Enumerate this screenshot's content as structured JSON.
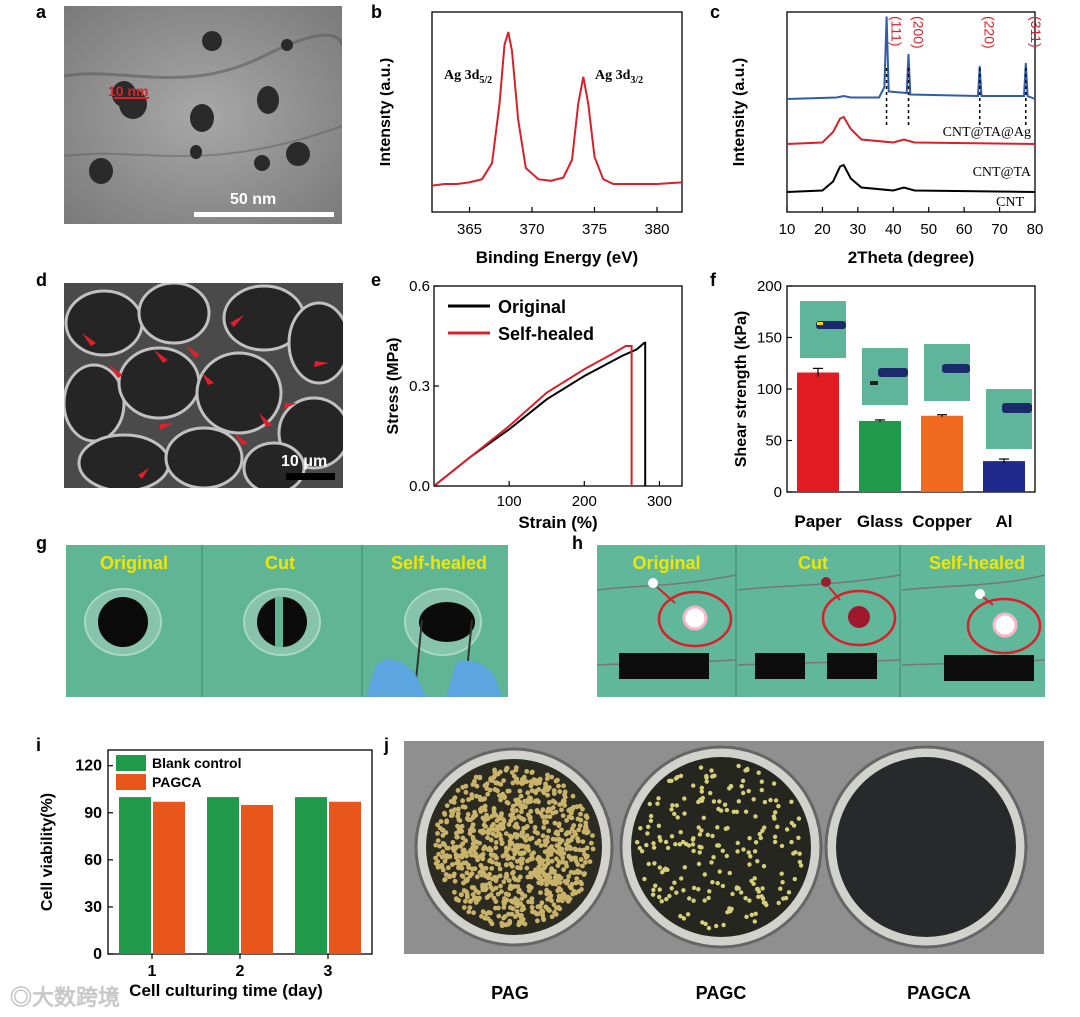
{
  "panels": {
    "a": {
      "letter": "a",
      "scale_small": "10 nm",
      "scale_large": "50 nm"
    },
    "b": {
      "letter": "b",
      "xlabel": "Binding Energy (eV)",
      "ylabel": "Intensity (a.u.)",
      "peak1_label": "Ag 3d5/2",
      "peak2_label": "Ag 3d3/2",
      "xticks": [
        "365",
        "370",
        "375",
        "380"
      ]
    },
    "c": {
      "letter": "c",
      "xlabel": "2Theta (degree)",
      "ylabel": "Intensity (a.u.)",
      "xticks": [
        "10",
        "20",
        "30",
        "40",
        "50",
        "60",
        "70",
        "80"
      ],
      "planes": [
        "(111)",
        "(200)",
        "(220)",
        "(311)"
      ],
      "series_labels": [
        "CNT@TA@Ag",
        "CNT@TA",
        "CNT"
      ]
    },
    "d": {
      "letter": "d",
      "scale": "10 μm"
    },
    "e": {
      "letter": "e",
      "xlabel": "Strain (%)",
      "ylabel": "Stress (MPa)",
      "xticks": [
        "100",
        "200",
        "300"
      ],
      "yticks": [
        "0.0",
        "0.3",
        "0.6"
      ],
      "legend": [
        "Original",
        "Self-healed"
      ]
    },
    "f": {
      "letter": "f",
      "ylabel": "Shear strength (kPa)",
      "yticks": [
        "0",
        "50",
        "100",
        "150",
        "200"
      ],
      "categories": [
        "Paper",
        "Glass",
        "Copper",
        "Al"
      ]
    },
    "g": {
      "letter": "g",
      "labels": [
        "Original",
        "Cut",
        "Self-healed"
      ]
    },
    "h": {
      "letter": "h",
      "labels": [
        "Original",
        "Cut",
        "Self-healed"
      ]
    },
    "i": {
      "letter": "i",
      "xlabel": "Cell culturing time (day)",
      "ylabel": "Cell viability(%)",
      "yticks": [
        "0",
        "30",
        "60",
        "90",
        "120"
      ],
      "categories": [
        "1",
        "2",
        "3"
      ],
      "legend": [
        "Blank control",
        "PAGCA"
      ]
    },
    "j": {
      "letter": "j",
      "labels": [
        "PAG",
        "PAGC",
        "PAGCA"
      ]
    }
  },
  "watermark": "大数跨境",
  "colors": {
    "red": "#d9202a",
    "blue": "#2f5ea8",
    "black": "#000000",
    "green": "#1e9a4a",
    "orange": "#e8561a",
    "navy": "#1f2a8c",
    "photo_green": "#5fb594"
  },
  "chart_data": [
    {
      "panel": "b",
      "type": "line",
      "title": "",
      "xlabel": "Binding Energy (eV)",
      "ylabel": "Intensity (a.u.)",
      "xlim": [
        362,
        382
      ],
      "series": [
        {
          "name": "Ag 3d",
          "color": "#d9202a",
          "x": [
            362,
            363,
            364,
            365,
            366,
            366.8,
            367.4,
            367.8,
            368.1,
            368.4,
            368.9,
            369.5,
            370.5,
            371.5,
            372.5,
            373.2,
            373.7,
            374.1,
            374.5,
            375,
            375.7,
            376.5,
            378,
            380,
            382
          ],
          "y": [
            0.04,
            0.05,
            0.05,
            0.06,
            0.08,
            0.18,
            0.55,
            0.92,
            1.0,
            0.88,
            0.45,
            0.15,
            0.08,
            0.07,
            0.09,
            0.2,
            0.55,
            0.72,
            0.55,
            0.22,
            0.08,
            0.05,
            0.05,
            0.05,
            0.06
          ]
        }
      ]
    },
    {
      "panel": "c",
      "type": "line",
      "title": "",
      "xlabel": "2Theta (degree)",
      "ylabel": "Intensity (a.u.)",
      "xlim": [
        10,
        80
      ],
      "peak_positions": [
        38.1,
        44.3,
        64.4,
        77.4
      ],
      "series": [
        {
          "name": "CNT@TA@Ag",
          "color": "#2f5ea8",
          "offset": 0.62,
          "x": [
            10,
            24,
            26,
            28,
            36,
            37.5,
            38.1,
            38.7,
            43.8,
            44.3,
            44.8,
            63.9,
            64.4,
            64.9,
            76.9,
            77.4,
            77.9,
            80
          ],
          "y": [
            0,
            0.01,
            0.02,
            0.01,
            0.01,
            0.08,
            0.55,
            0.05,
            0.04,
            0.3,
            0.03,
            0.02,
            0.22,
            0.02,
            0.02,
            0.24,
            0.02,
            0.0
          ]
        },
        {
          "name": "CNT@TA",
          "color": "#d9202a",
          "offset": 0.32,
          "x": [
            10,
            20,
            23,
            25,
            26,
            28,
            31,
            40,
            43,
            46,
            80
          ],
          "y": [
            0,
            0.01,
            0.08,
            0.17,
            0.18,
            0.1,
            0.03,
            0.01,
            0.03,
            0.01,
            0
          ]
        },
        {
          "name": "CNT",
          "color": "#000000",
          "offset": 0.0,
          "x": [
            10,
            20,
            23,
            25,
            26,
            28,
            31,
            40,
            43,
            46,
            80
          ],
          "y": [
            0,
            0.01,
            0.07,
            0.17,
            0.18,
            0.09,
            0.03,
            0.01,
            0.03,
            0.01,
            0
          ]
        }
      ]
    },
    {
      "panel": "e",
      "type": "line",
      "title": "",
      "xlabel": "Strain (%)",
      "ylabel": "Stress (MPa)",
      "xlim": [
        0,
        330
      ],
      "ylim": [
        0,
        0.6
      ],
      "series": [
        {
          "name": "Original",
          "color": "#000000",
          "x": [
            0,
            50,
            100,
            150,
            200,
            250,
            270,
            280,
            281,
            281
          ],
          "y": [
            0,
            0.09,
            0.17,
            0.26,
            0.33,
            0.39,
            0.41,
            0.43,
            0.43,
            0
          ]
        },
        {
          "name": "Self-healed",
          "color": "#d9202a",
          "x": [
            0,
            50,
            100,
            150,
            200,
            240,
            255,
            263,
            263
          ],
          "y": [
            0,
            0.09,
            0.18,
            0.28,
            0.35,
            0.4,
            0.42,
            0.42,
            0
          ]
        }
      ]
    },
    {
      "panel": "f",
      "type": "bar",
      "title": "",
      "xlabel": "",
      "ylabel": "Shear strength (kPa)",
      "ylim": [
        0,
        200
      ],
      "categories": [
        "Paper",
        "Glass",
        "Copper",
        "Al"
      ],
      "values": [
        116,
        69,
        74,
        30
      ],
      "errors": [
        4,
        1,
        1,
        2
      ],
      "colors": [
        "#e31b23",
        "#1e9a4a",
        "#ef6a1f",
        "#1f2a8c"
      ]
    },
    {
      "panel": "i",
      "type": "bar",
      "title": "",
      "xlabel": "Cell culturing time (day)",
      "ylabel": "Cell viability(%)",
      "ylim": [
        0,
        130
      ],
      "categories": [
        "1",
        "2",
        "3"
      ],
      "series": [
        {
          "name": "Blank control",
          "color": "#1e9a4a",
          "values": [
            100,
            100,
            100
          ]
        },
        {
          "name": "PAGCA",
          "color": "#e8561a",
          "values": [
            97,
            95,
            97
          ]
        }
      ]
    }
  ]
}
